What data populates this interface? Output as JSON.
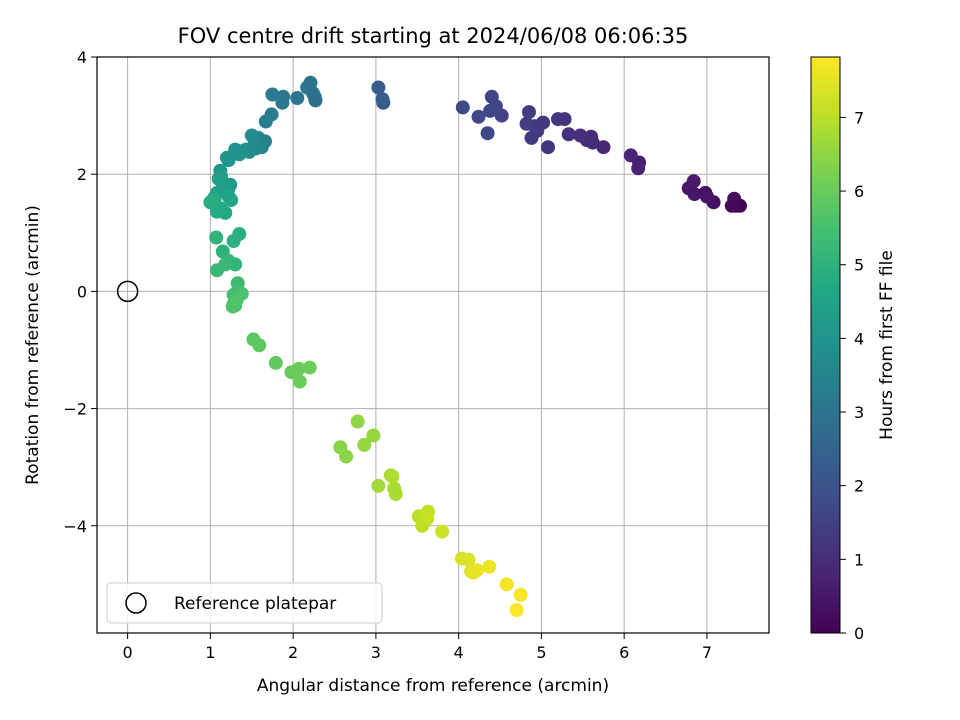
{
  "chart_data": {
    "type": "scatter",
    "title": "FOV centre drift starting at 2024/06/08 06:06:35",
    "xlabel": "Angular distance from reference (arcmin)",
    "ylabel": "Rotation from reference (arcmin)",
    "xlim": [
      -0.37,
      7.75
    ],
    "ylim": [
      -5.83,
      4.0
    ],
    "x_ticks": [
      0,
      1,
      2,
      3,
      4,
      5,
      6,
      7
    ],
    "y_ticks": [
      -4,
      -2,
      0,
      2,
      4
    ],
    "x_tick_labels": [
      "0",
      "1",
      "2",
      "3",
      "4",
      "5",
      "6",
      "7"
    ],
    "y_tick_labels": [
      "−4",
      "−2",
      "0",
      "2",
      "4"
    ],
    "grid": true,
    "legend_position": "lower-left",
    "legend": [
      {
        "label": "Reference platepar",
        "marker": "open-circle"
      }
    ],
    "reference_point": {
      "x": 0,
      "y": 0,
      "label": "Reference platepar"
    },
    "colorbar": {
      "label": "Hours from first FF file",
      "colormap": "viridis",
      "range": [
        0,
        7.82
      ],
      "ticks": [
        0,
        1,
        2,
        3,
        4,
        5,
        6,
        7
      ],
      "tick_labels": [
        "0",
        "1",
        "2",
        "3",
        "4",
        "5",
        "6",
        "7"
      ]
    },
    "series": [
      {
        "color_by": "hours",
        "x": [
          7.4,
          7.35,
          7.3,
          7.33,
          7.08,
          6.98,
          7.0,
          6.85,
          6.78,
          6.84,
          6.18,
          6.17,
          6.08,
          5.75,
          5.62,
          5.6,
          5.55,
          5.47,
          5.33,
          5.28,
          5.2,
          5.08,
          5.02,
          4.95,
          4.92,
          4.88,
          4.82,
          4.85,
          4.52,
          4.45,
          4.4,
          4.38,
          4.35,
          4.24,
          4.05,
          3.09,
          3.08,
          3.03,
          2.27,
          2.26,
          2.24,
          2.21,
          2.17,
          2.05,
          1.88,
          1.87,
          1.75,
          1.74,
          1.67,
          1.66,
          1.62,
          1.58,
          1.55,
          1.53,
          1.5,
          1.47,
          1.43,
          1.4,
          1.35,
          1.3,
          1.22,
          1.2,
          1.12,
          1.24,
          1.22,
          1.18,
          1.15,
          1.13,
          1.1,
          1.08,
          1.05,
          1.25,
          1.22,
          1.18,
          1.12,
          1.08,
          1.05,
          1.0,
          1.35,
          1.28,
          1.15,
          1.07,
          1.3,
          1.22,
          1.18,
          1.08,
          1.33,
          1.32,
          1.28,
          1.28,
          1.3,
          1.38,
          1.32,
          1.27,
          1.52,
          1.59,
          1.79,
          1.98,
          2.07,
          2.08,
          2.2,
          2.57,
          2.64,
          2.78,
          2.86,
          2.97,
          3.03,
          3.18,
          3.24,
          3.22,
          3.2,
          3.52,
          3.56,
          3.63,
          3.62,
          3.8,
          4.04,
          4.12,
          4.15,
          4.18,
          4.22,
          4.37,
          4.58,
          4.75,
          4.7
        ],
        "y": [
          1.46,
          1.46,
          1.46,
          1.58,
          1.52,
          1.68,
          1.62,
          1.66,
          1.76,
          1.88,
          2.2,
          2.1,
          2.32,
          2.46,
          2.54,
          2.64,
          2.58,
          2.66,
          2.68,
          2.94,
          2.94,
          2.46,
          2.88,
          2.74,
          2.82,
          2.62,
          2.86,
          3.06,
          3.0,
          3.16,
          3.32,
          3.08,
          2.7,
          2.98,
          3.14,
          3.22,
          3.28,
          3.48,
          3.26,
          3.32,
          3.38,
          3.56,
          3.48,
          3.3,
          3.32,
          3.22,
          3.36,
          3.02,
          2.9,
          2.56,
          2.46,
          2.62,
          2.44,
          2.5,
          2.66,
          2.38,
          2.42,
          2.4,
          2.34,
          2.42,
          2.24,
          2.28,
          2.06,
          1.82,
          1.76,
          1.78,
          1.82,
          1.96,
          1.92,
          1.68,
          1.6,
          1.56,
          1.62,
          1.34,
          1.42,
          1.36,
          1.56,
          1.52,
          0.98,
          0.86,
          0.68,
          0.92,
          0.46,
          0.52,
          0.46,
          0.36,
          0.14,
          -0.04,
          -0.06,
          -0.22,
          -0.24,
          -0.04,
          -0.14,
          -0.26,
          -0.82,
          -0.92,
          -1.22,
          -1.38,
          -1.32,
          -1.54,
          -1.3,
          -2.66,
          -2.82,
          -2.22,
          -2.62,
          -2.46,
          -3.32,
          -3.14,
          -3.46,
          -3.36,
          -3.16,
          -3.84,
          -4.0,
          -3.76,
          -3.88,
          -4.1,
          -4.56,
          -4.58,
          -4.78,
          -4.8,
          -4.76,
          -4.7,
          -5.0,
          -5.18,
          -5.44
        ],
        "hours": [
          0.05,
          0.1,
          0.15,
          0.2,
          0.3,
          0.35,
          0.4,
          0.45,
          0.5,
          0.55,
          0.7,
          0.75,
          0.8,
          0.9,
          0.95,
          1.0,
          1.0,
          1.05,
          1.1,
          1.15,
          1.2,
          1.2,
          1.25,
          1.3,
          1.3,
          1.35,
          1.4,
          1.4,
          1.5,
          1.55,
          1.6,
          1.62,
          1.65,
          1.7,
          1.75,
          2.2,
          2.25,
          2.3,
          2.8,
          2.85,
          2.9,
          2.95,
          3.0,
          3.05,
          3.1,
          3.15,
          3.2,
          3.25,
          3.3,
          3.45,
          3.5,
          3.55,
          3.6,
          3.65,
          3.7,
          3.75,
          3.8,
          3.85,
          3.9,
          3.95,
          4.0,
          4.05,
          4.1,
          4.15,
          4.2,
          4.25,
          4.3,
          4.35,
          4.4,
          4.45,
          4.5,
          4.55,
          4.6,
          4.65,
          4.7,
          4.75,
          4.8,
          4.85,
          4.9,
          4.95,
          5.0,
          5.05,
          5.1,
          5.15,
          5.2,
          5.25,
          5.3,
          5.35,
          5.4,
          5.45,
          5.5,
          5.55,
          5.6,
          5.65,
          5.8,
          5.85,
          5.9,
          5.95,
          6.0,
          6.02,
          6.05,
          6.4,
          6.45,
          6.5,
          6.55,
          6.6,
          6.7,
          6.75,
          6.8,
          6.82,
          6.85,
          7.0,
          7.05,
          7.1,
          7.15,
          7.2,
          7.35,
          7.4,
          7.45,
          7.5,
          7.55,
          7.6,
          7.7,
          7.75,
          7.8
        ]
      }
    ]
  }
}
